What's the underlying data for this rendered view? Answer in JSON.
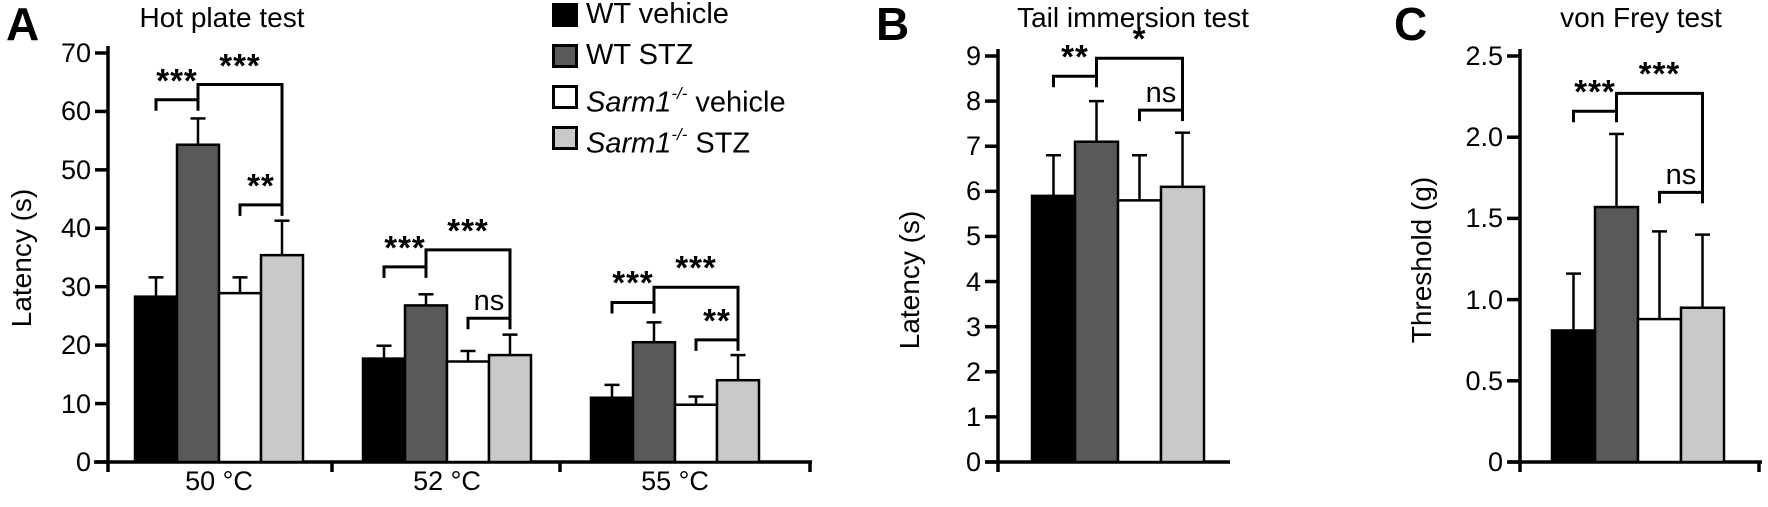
{
  "figure": {
    "background": "#ffffff",
    "description": "Three-panel bar figure of nociception tests"
  },
  "legend": {
    "position": "top-right-of-panel-A",
    "items": [
      {
        "color": "#000000",
        "name": "WT vehicle",
        "runs": [
          {
            "t": "WT vehicle"
          }
        ]
      },
      {
        "color": "#595959",
        "name": "WT STZ",
        "runs": [
          {
            "t": "WT STZ"
          }
        ]
      },
      {
        "color": "#ffffff",
        "name": "Sarm1-/- vehicle",
        "runs": [
          {
            "t": "Sarm1",
            "style": "italic"
          },
          {
            "t": "-/-",
            "style": "sup"
          },
          {
            "t": " vehicle"
          }
        ]
      },
      {
        "color": "#c9c9c9",
        "name": "Sarm1-/- STZ",
        "runs": [
          {
            "t": "Sarm1",
            "style": "italic"
          },
          {
            "t": "-/-",
            "style": "sup"
          },
          {
            "t": " STZ"
          }
        ]
      }
    ]
  },
  "chart_data": [
    {
      "id": "A",
      "panel_letter": "A",
      "type": "bar",
      "title": "Hot plate test",
      "xlabel": "",
      "ylabel": "Latency (s)",
      "ylim": [
        0,
        70
      ],
      "grid": false,
      "yticks": [
        {
          "v": 0,
          "label": "0"
        },
        {
          "v": 10,
          "label": "10"
        },
        {
          "v": 20,
          "label": "20"
        },
        {
          "v": 30,
          "label": "30"
        },
        {
          "v": 40,
          "label": "40"
        },
        {
          "v": 50,
          "label": "50"
        },
        {
          "v": 60,
          "label": "60"
        },
        {
          "v": 70,
          "label": "70"
        }
      ],
      "categories": [
        "50 °C",
        "52 °C",
        "55 °C"
      ],
      "series": [
        {
          "name": "WT vehicle",
          "fill": "#000000",
          "values": [
            28.3,
            17.7,
            11.0
          ],
          "errors": [
            3.3,
            2.2,
            2.2
          ]
        },
        {
          "name": "WT STZ",
          "fill": "#595959",
          "values": [
            54.3,
            26.8,
            20.5
          ],
          "errors": [
            4.5,
            1.9,
            3.4
          ]
        },
        {
          "name": "Sarm1-/- vehicle",
          "fill": "#ffffff",
          "values": [
            28.9,
            17.2,
            9.8
          ],
          "errors": [
            2.7,
            1.8,
            1.4
          ]
        },
        {
          "name": "Sarm1-/- STZ",
          "fill": "#c9c9c9",
          "values": [
            35.4,
            18.3,
            14.0
          ],
          "errors": [
            5.9,
            3.5,
            4.3
          ]
        }
      ],
      "significance": [
        {
          "group": 0,
          "between": [
            0,
            1
          ],
          "label": "***",
          "y": 62.0
        },
        {
          "group": 0,
          "between": [
            1,
            3
          ],
          "label": "***",
          "y": 64.6
        },
        {
          "group": 0,
          "between": [
            2,
            3
          ],
          "label": "**",
          "y": 44.0
        },
        {
          "group": 1,
          "between": [
            0,
            1
          ],
          "label": "***",
          "y": 33.4
        },
        {
          "group": 1,
          "between": [
            1,
            3
          ],
          "label": "***",
          "y": 36.3
        },
        {
          "group": 1,
          "between": [
            2,
            3
          ],
          "label": "ns",
          "y": 24.6
        },
        {
          "group": 2,
          "between": [
            0,
            1
          ],
          "label": "***",
          "y": 27.3
        },
        {
          "group": 2,
          "between": [
            1,
            3
          ],
          "label": "***",
          "y": 29.9
        },
        {
          "group": 2,
          "between": [
            2,
            3
          ],
          "label": "**",
          "y": 20.9
        }
      ]
    },
    {
      "id": "B",
      "panel_letter": "B",
      "type": "bar",
      "title": "Tail immersion test",
      "xlabel": "",
      "ylabel": "Latency (s)",
      "ylim": [
        0,
        9
      ],
      "grid": false,
      "yticks": [
        {
          "v": 0,
          "label": "0"
        },
        {
          "v": 1,
          "label": "1"
        },
        {
          "v": 2,
          "label": "2"
        },
        {
          "v": 3,
          "label": "3"
        },
        {
          "v": 4,
          "label": "4"
        },
        {
          "v": 5,
          "label": "5"
        },
        {
          "v": 6,
          "label": "6"
        },
        {
          "v": 7,
          "label": "7"
        },
        {
          "v": 8,
          "label": "8"
        },
        {
          "v": 9,
          "label": "9"
        }
      ],
      "categories": [
        ""
      ],
      "series": [
        {
          "name": "WT vehicle",
          "fill": "#000000",
          "values": [
            5.9
          ],
          "errors": [
            0.9
          ]
        },
        {
          "name": "WT STZ",
          "fill": "#595959",
          "values": [
            7.1
          ],
          "errors": [
            0.9
          ]
        },
        {
          "name": "Sarm1-/- vehicle",
          "fill": "#ffffff",
          "values": [
            5.8
          ],
          "errors": [
            1.0
          ]
        },
        {
          "name": "Sarm1-/- STZ",
          "fill": "#c9c9c9",
          "values": [
            6.1
          ],
          "errors": [
            1.2
          ]
        }
      ],
      "significance": [
        {
          "group": 0,
          "between": [
            0,
            1
          ],
          "label": "**",
          "y": 8.55
        },
        {
          "group": 0,
          "between": [
            1,
            3
          ],
          "label": "*",
          "y": 8.95
        },
        {
          "group": 0,
          "between": [
            2,
            3
          ],
          "label": "ns",
          "y": 7.8
        }
      ]
    },
    {
      "id": "C",
      "panel_letter": "C",
      "type": "bar",
      "title": "von Frey test",
      "xlabel": "",
      "ylabel": "Threshold (g)",
      "ylim": [
        0,
        2.5
      ],
      "grid": false,
      "yticks": [
        {
          "v": 0,
          "label": "0"
        },
        {
          "v": 0.5,
          "label": "0.5"
        },
        {
          "v": 1.0,
          "label": "1.0"
        },
        {
          "v": 1.5,
          "label": "1.5"
        },
        {
          "v": 2.0,
          "label": "2.0"
        },
        {
          "v": 2.5,
          "label": "2.5"
        }
      ],
      "categories": [
        ""
      ],
      "series": [
        {
          "name": "WT vehicle",
          "fill": "#000000",
          "values": [
            0.81
          ],
          "errors": [
            0.35
          ]
        },
        {
          "name": "WT STZ",
          "fill": "#595959",
          "values": [
            1.57
          ],
          "errors": [
            0.45
          ]
        },
        {
          "name": "Sarm1-/- vehicle",
          "fill": "#ffffff",
          "values": [
            0.88
          ],
          "errors": [
            0.54
          ]
        },
        {
          "name": "Sarm1-/- STZ",
          "fill": "#c9c9c9",
          "values": [
            0.95
          ],
          "errors": [
            0.45
          ]
        }
      ],
      "significance": [
        {
          "group": 0,
          "between": [
            0,
            1
          ],
          "label": "***",
          "y": 2.16
        },
        {
          "group": 0,
          "between": [
            1,
            3
          ],
          "label": "***",
          "y": 2.27
        },
        {
          "group": 0,
          "between": [
            2,
            3
          ],
          "label": "ns",
          "y": 1.66
        }
      ]
    }
  ]
}
